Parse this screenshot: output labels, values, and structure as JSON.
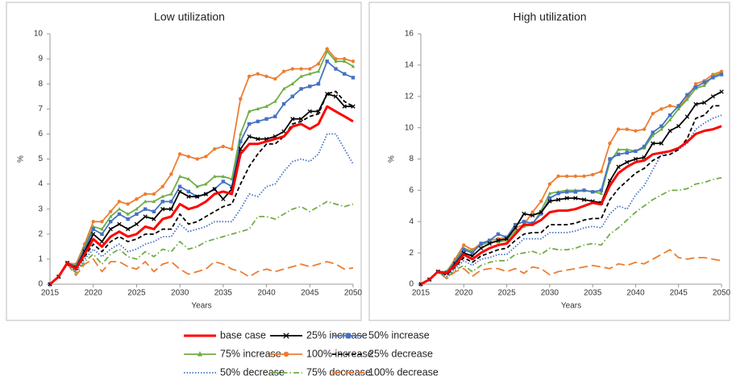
{
  "chart_data": [
    {
      "type": "line",
      "title": "Low utilization",
      "x_label": "Years",
      "y_label": "%",
      "x": [
        2015,
        2016,
        2017,
        2018,
        2019,
        2020,
        2021,
        2022,
        2023,
        2024,
        2025,
        2026,
        2027,
        2028,
        2029,
        2030,
        2031,
        2032,
        2033,
        2034,
        2035,
        2036,
        2037,
        2038,
        2039,
        2040,
        2041,
        2042,
        2043,
        2044,
        2045,
        2046,
        2047,
        2048,
        2049,
        2050
      ],
      "xlim": [
        2015,
        2050
      ],
      "xticks": [
        2015,
        2020,
        2025,
        2030,
        2035,
        2040,
        2045,
        2050
      ],
      "ylim": [
        0,
        10
      ],
      "yticks": [
        0,
        1,
        2,
        3,
        4,
        5,
        6,
        7,
        8,
        9,
        10
      ],
      "series": [
        {
          "name": "base case",
          "color": "#ff0000",
          "dash": "solid",
          "marker": null,
          "width": 3,
          "values": [
            0,
            0.3,
            0.85,
            0.6,
            1.2,
            1.8,
            1.5,
            1.9,
            2.1,
            1.9,
            2.0,
            2.3,
            2.2,
            2.6,
            2.7,
            3.2,
            3.0,
            3.1,
            3.3,
            3.6,
            3.7,
            3.6,
            5.2,
            5.6,
            5.6,
            5.7,
            5.8,
            5.9,
            6.3,
            6.4,
            6.2,
            6.4,
            7.1,
            6.9,
            6.7,
            6.5
          ]
        },
        {
          "name": "25% increase",
          "color": "#000000",
          "dash": "solid",
          "marker": "x",
          "width": 1.8,
          "values": [
            0,
            0.3,
            0.85,
            0.65,
            1.3,
            2.0,
            1.7,
            2.2,
            2.4,
            2.2,
            2.4,
            2.7,
            2.6,
            3.0,
            3.0,
            3.7,
            3.5,
            3.5,
            3.6,
            3.8,
            3.4,
            3.8,
            5.4,
            5.9,
            5.8,
            5.8,
            5.9,
            6.1,
            6.6,
            6.6,
            6.9,
            6.9,
            7.6,
            7.5,
            7.1,
            7.1
          ]
        },
        {
          "name": "50% increase",
          "color": "#4472c4",
          "dash": "solid",
          "marker": "square",
          "width": 1.8,
          "values": [
            0,
            0.3,
            0.85,
            0.7,
            1.4,
            2.2,
            2.0,
            2.5,
            2.8,
            2.6,
            2.8,
            3.0,
            2.9,
            3.3,
            3.3,
            3.9,
            3.7,
            3.5,
            3.6,
            3.8,
            4.1,
            3.9,
            5.7,
            6.4,
            6.5,
            6.6,
            6.7,
            7.2,
            7.5,
            7.8,
            7.9,
            8.0,
            8.9,
            8.6,
            8.4,
            8.25
          ]
        },
        {
          "name": "75% increase",
          "color": "#70ad47",
          "dash": "solid",
          "marker": "triangle",
          "width": 1.8,
          "values": [
            0,
            0.3,
            0.85,
            0.75,
            1.5,
            2.3,
            2.2,
            2.7,
            3.0,
            2.8,
            3.0,
            3.3,
            3.3,
            3.5,
            3.6,
            4.3,
            4.2,
            3.9,
            4.0,
            4.3,
            4.3,
            4.2,
            6.0,
            6.9,
            7.0,
            7.1,
            7.3,
            7.8,
            8.0,
            8.3,
            8.4,
            8.5,
            9.3,
            8.9,
            8.9,
            8.7
          ]
        },
        {
          "name": "100% increase",
          "color": "#ed7d31",
          "dash": "solid",
          "marker": "circle",
          "width": 1.8,
          "values": [
            0,
            0.3,
            0.85,
            0.8,
            1.6,
            2.5,
            2.5,
            2.9,
            3.3,
            3.2,
            3.4,
            3.6,
            3.6,
            3.9,
            4.4,
            5.2,
            5.1,
            5.0,
            5.1,
            5.4,
            5.5,
            5.4,
            7.4,
            8.3,
            8.4,
            8.3,
            8.2,
            8.5,
            8.6,
            8.6,
            8.6,
            8.8,
            9.4,
            9.0,
            9.0,
            8.9
          ]
        },
        {
          "name": "25% decrease",
          "color": "#000000",
          "dash": "dashed",
          "marker": null,
          "width": 1.8,
          "values": [
            0,
            0.3,
            0.8,
            0.6,
            1.1,
            1.6,
            1.3,
            1.7,
            1.9,
            1.7,
            1.8,
            2.0,
            2.0,
            2.2,
            2.2,
            2.8,
            2.4,
            2.5,
            2.7,
            2.9,
            3.1,
            3.2,
            4.0,
            4.7,
            5.2,
            5.6,
            5.6,
            5.9,
            6.4,
            6.5,
            6.7,
            6.8,
            7.6,
            7.7,
            7.3,
            7.1
          ]
        },
        {
          "name": "50% decrease",
          "color": "#4472c4",
          "dash": "dotted",
          "marker": null,
          "width": 1.8,
          "values": [
            0,
            0.3,
            0.8,
            0.5,
            1.0,
            1.4,
            1.1,
            1.4,
            1.6,
            1.3,
            1.4,
            1.6,
            1.7,
            1.9,
            1.9,
            2.4,
            2.1,
            2.2,
            2.3,
            2.5,
            2.5,
            2.5,
            3.0,
            3.6,
            3.5,
            3.9,
            4.0,
            4.5,
            4.9,
            5.0,
            4.9,
            5.2,
            6.0,
            6.0,
            5.4,
            4.8
          ]
        },
        {
          "name": "75% decrease",
          "color": "#70ad47",
          "dash": "dashdot",
          "marker": null,
          "width": 1.8,
          "values": [
            0,
            0.3,
            0.8,
            0.45,
            0.9,
            1.2,
            0.8,
            1.2,
            1.4,
            1.1,
            1.0,
            1.3,
            1.1,
            1.4,
            1.3,
            1.7,
            1.4,
            1.5,
            1.7,
            1.8,
            1.9,
            2.0,
            2.1,
            2.2,
            2.7,
            2.7,
            2.6,
            2.8,
            3.0,
            3.1,
            2.9,
            3.1,
            3.3,
            3.2,
            3.1,
            3.2
          ]
        },
        {
          "name": "100% decrease",
          "color": "#ed7d31",
          "dash": "longdash",
          "marker": null,
          "width": 1.8,
          "values": [
            0,
            0.3,
            0.8,
            0.35,
            0.8,
            1.0,
            0.5,
            0.9,
            0.9,
            0.7,
            0.6,
            0.9,
            0.5,
            0.8,
            0.9,
            0.6,
            0.4,
            0.5,
            0.6,
            0.9,
            0.8,
            0.6,
            0.5,
            0.3,
            0.5,
            0.6,
            0.5,
            0.6,
            0.7,
            0.8,
            0.7,
            0.8,
            0.9,
            0.8,
            0.6,
            0.65
          ]
        }
      ]
    },
    {
      "type": "line",
      "title": "High utilization",
      "x_label": "Years",
      "y_label": "%",
      "x": [
        2015,
        2016,
        2017,
        2018,
        2019,
        2020,
        2021,
        2022,
        2023,
        2024,
        2025,
        2026,
        2027,
        2028,
        2029,
        2030,
        2031,
        2032,
        2033,
        2034,
        2035,
        2036,
        2037,
        2038,
        2039,
        2040,
        2041,
        2042,
        2043,
        2044,
        2045,
        2046,
        2047,
        2048,
        2049,
        2050
      ],
      "xlim": [
        2015,
        2050
      ],
      "xticks": [
        2015,
        2020,
        2025,
        2030,
        2035,
        2040,
        2045,
        2050
      ],
      "ylim": [
        0,
        16
      ],
      "yticks": [
        0,
        2,
        4,
        6,
        8,
        10,
        12,
        14,
        16
      ],
      "series": [
        {
          "color": "#ff0000",
          "dash": "solid",
          "marker": null,
          "width": 3,
          "values": [
            0,
            0.3,
            0.8,
            0.7,
            1.2,
            1.9,
            1.6,
            2.0,
            2.3,
            2.5,
            2.6,
            3.2,
            3.8,
            3.8,
            4.1,
            4.6,
            4.7,
            4.7,
            4.8,
            5.0,
            5.2,
            5.1,
            6.3,
            7.1,
            7.5,
            7.8,
            7.9,
            8.3,
            8.4,
            8.5,
            8.7,
            9.1,
            9.6,
            9.8,
            9.9,
            10.1
          ]
        },
        {
          "color": "#000000",
          "dash": "solid",
          "marker": "x",
          "width": 1.8,
          "values": [
            0,
            0.3,
            0.8,
            0.7,
            1.3,
            2.0,
            1.8,
            2.3,
            2.6,
            2.8,
            2.9,
            3.6,
            4.5,
            4.4,
            4.6,
            5.3,
            5.4,
            5.5,
            5.5,
            5.4,
            5.3,
            5.2,
            6.6,
            7.5,
            7.8,
            8.0,
            8.1,
            9.0,
            9.0,
            9.8,
            10.1,
            10.7,
            11.5,
            11.6,
            12.0,
            12.3
          ]
        },
        {
          "color": "#4472c4",
          "dash": "solid",
          "marker": "square",
          "width": 1.8,
          "values": [
            0,
            0.3,
            0.8,
            0.75,
            1.4,
            2.2,
            2.0,
            2.6,
            2.8,
            3.2,
            3.0,
            3.8,
            4.0,
            3.9,
            4.5,
            5.5,
            5.8,
            5.9,
            5.9,
            6.0,
            5.9,
            6.0,
            8.0,
            8.3,
            8.4,
            8.5,
            8.8,
            9.7,
            10.1,
            10.8,
            11.4,
            12.1,
            12.6,
            12.9,
            13.2,
            13.4
          ]
        },
        {
          "color": "#70ad47",
          "dash": "solid",
          "marker": "triangle",
          "width": 1.8,
          "values": [
            0,
            0.3,
            0.8,
            0.8,
            1.5,
            2.3,
            2.1,
            2.5,
            2.7,
            2.7,
            2.8,
            3.4,
            3.7,
            3.8,
            4.7,
            5.8,
            5.9,
            6.0,
            6.0,
            6.0,
            5.9,
            5.8,
            7.8,
            8.6,
            8.6,
            8.5,
            8.7,
            9.5,
            9.9,
            10.5,
            11.2,
            11.8,
            12.5,
            12.7,
            13.3,
            13.5
          ]
        },
        {
          "color": "#ed7d31",
          "dash": "solid",
          "marker": "circle",
          "width": 1.8,
          "values": [
            0,
            0.3,
            0.8,
            0.8,
            1.6,
            2.5,
            2.2,
            2.6,
            2.8,
            2.9,
            3.0,
            3.6,
            3.8,
            4.6,
            5.3,
            6.4,
            6.9,
            6.9,
            6.9,
            6.9,
            7.0,
            7.2,
            9.0,
            9.9,
            9.9,
            9.8,
            9.9,
            10.9,
            11.2,
            11.4,
            11.3,
            11.9,
            12.8,
            13.0,
            13.4,
            13.6
          ]
        },
        {
          "color": "#000000",
          "dash": "dashed",
          "marker": null,
          "width": 1.8,
          "values": [
            0,
            0.3,
            0.8,
            0.6,
            1.1,
            1.7,
            1.4,
            1.8,
            2.0,
            2.2,
            2.3,
            2.8,
            3.2,
            3.3,
            3.3,
            3.8,
            3.8,
            3.8,
            3.9,
            4.1,
            4.2,
            4.2,
            5.4,
            6.1,
            6.6,
            7.1,
            7.4,
            7.9,
            8.2,
            8.3,
            8.6,
            9.3,
            10.6,
            10.8,
            11.4,
            11.4
          ]
        },
        {
          "color": "#4472c4",
          "dash": "dotted",
          "marker": null,
          "width": 1.8,
          "values": [
            0,
            0.3,
            0.8,
            0.5,
            1.0,
            1.5,
            1.2,
            1.6,
            1.7,
            1.9,
            1.9,
            2.4,
            2.9,
            2.9,
            2.9,
            3.3,
            3.3,
            3.3,
            3.4,
            3.6,
            3.7,
            3.6,
            4.5,
            5.0,
            4.8,
            5.7,
            6.3,
            7.3,
            8.3,
            8.5,
            8.6,
            9.0,
            9.9,
            10.3,
            10.6,
            10.8
          ]
        },
        {
          "color": "#70ad47",
          "dash": "dashdot",
          "marker": null,
          "width": 1.8,
          "values": [
            0,
            0.3,
            0.8,
            0.4,
            0.9,
            1.2,
            0.8,
            1.2,
            1.4,
            1.5,
            1.5,
            1.9,
            2.0,
            2.1,
            1.9,
            2.3,
            2.2,
            2.2,
            2.3,
            2.5,
            2.6,
            2.5,
            3.2,
            3.6,
            4.1,
            4.6,
            5.0,
            5.4,
            5.7,
            6.0,
            6.0,
            6.1,
            6.4,
            6.5,
            6.7,
            6.8
          ]
        },
        {
          "color": "#ed7d31",
          "dash": "longdash",
          "marker": null,
          "width": 1.8,
          "values": [
            0,
            0.3,
            0.8,
            0.35,
            0.8,
            1.0,
            0.5,
            0.9,
            1.0,
            1.0,
            0.8,
            1.0,
            0.7,
            1.1,
            1.0,
            0.6,
            0.8,
            0.9,
            1.0,
            1.1,
            1.2,
            1.1,
            1.0,
            1.3,
            1.2,
            1.4,
            1.3,
            1.6,
            1.9,
            2.2,
            1.7,
            1.6,
            1.7,
            1.7,
            1.6,
            1.5
          ]
        }
      ]
    }
  ]
}
